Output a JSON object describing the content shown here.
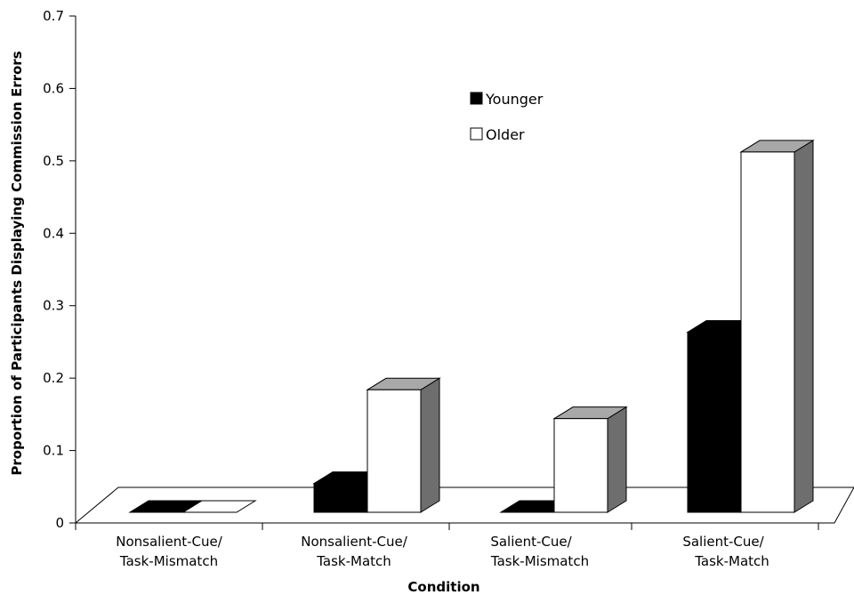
{
  "chart_data": {
    "type": "bar",
    "title": "",
    "xlabel": "Condition",
    "ylabel": "Proportion of Participants Displaying Commission Errors",
    "ylim": [
      0,
      0.7
    ],
    "yticks": [
      "0",
      "0.1",
      "0.2",
      "0.3",
      "0.4",
      "0.5",
      "0.6",
      "0.7"
    ],
    "categories": [
      {
        "line1": "Nonsalient-Cue/",
        "line2": "Task-Mismatch"
      },
      {
        "line1": "Nonsalient-Cue/",
        "line2": "Task-Match"
      },
      {
        "line1": "Salient-Cue/",
        "line2": "Task-Mismatch"
      },
      {
        "line1": "Salient-Cue/",
        "line2": "Task-Match"
      }
    ],
    "series": [
      {
        "name": "Younger",
        "color": "#000000",
        "values": [
          0,
          0.04,
          0,
          0.25
        ]
      },
      {
        "name": "Older",
        "color": "#ffffff",
        "values": [
          0,
          0.17,
          0.13,
          0.5
        ]
      }
    ],
    "legend_position": "top-center",
    "grid": false,
    "style": "3d"
  }
}
